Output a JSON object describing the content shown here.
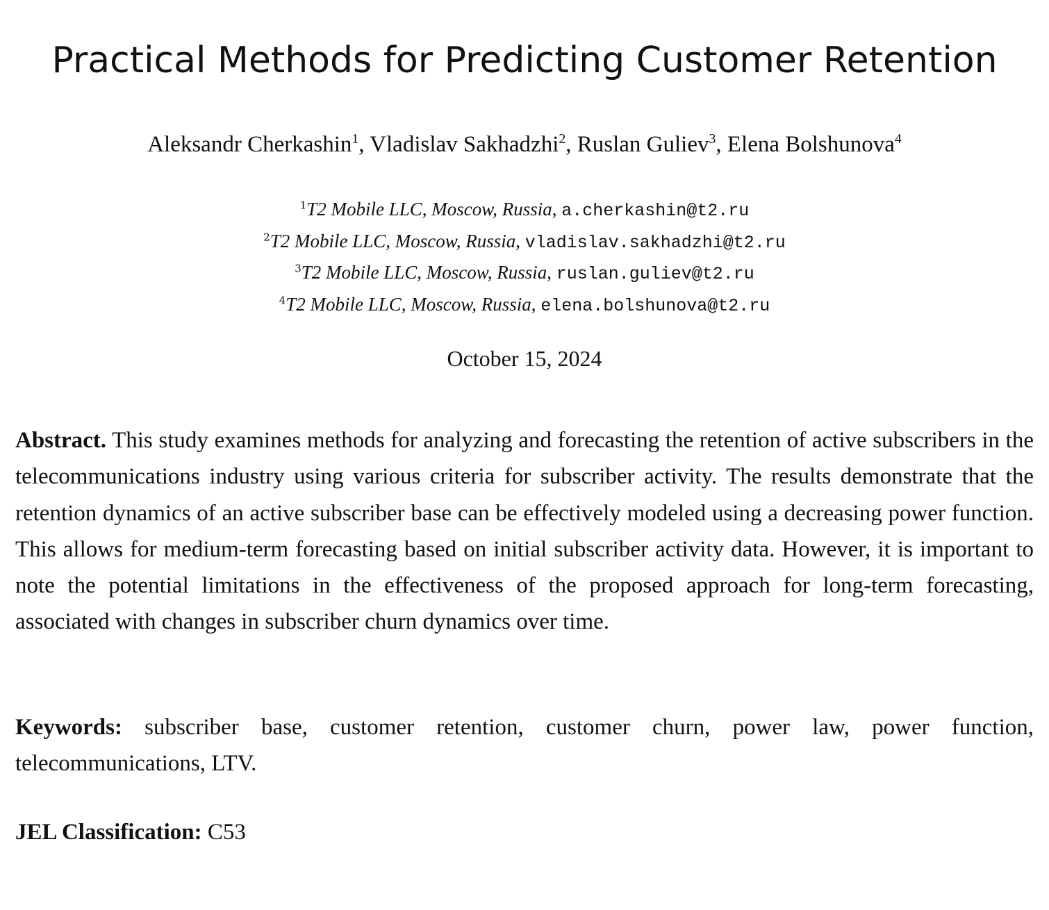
{
  "paper": {
    "title": "Practical Methods for Predicting Customer Retention",
    "authors": [
      {
        "name": "Aleksandr Cherkashin",
        "mark": "1",
        "sep": ", "
      },
      {
        "name": "Vladislav Sakhadzhi",
        "mark": "2",
        "sep": ", "
      },
      {
        "name": "Ruslan Guliev",
        "mark": "3",
        "sep": ", "
      },
      {
        "name": "Elena Bolshunova",
        "mark": "4",
        "sep": ""
      }
    ],
    "affiliations": [
      {
        "mark": "1",
        "org": "T2 Mobile LLC, Moscow, Russia",
        "email": "a.cherkashin@t2.ru"
      },
      {
        "mark": "2",
        "org": "T2 Mobile LLC, Moscow, Russia",
        "email": "vladislav.sakhadzhi@t2.ru"
      },
      {
        "mark": "3",
        "org": "T2 Mobile LLC, Moscow, Russia",
        "email": "ruslan.guliev@t2.ru"
      },
      {
        "mark": "4",
        "org": "T2 Mobile LLC, Moscow, Russia",
        "email": "elena.bolshunova@t2.ru"
      }
    ],
    "date": "October 15, 2024",
    "abstract": {
      "label": "Abstract.",
      "text": "This study examines methods for analyzing and forecasting the retention of active subscribers in the telecommunications industry using various criteria for subscriber activity. The results demonstrate that the retention dynamics of an active subscriber base can be effectively modeled using a decreasing power function. This allows for medium-term forecasting based on initial subscriber activity data. However, it is important to note the potential limitations in the effectiveness of the proposed approach for long-term forecasting, associated with changes in subscriber churn dynamics over time."
    },
    "keywords": {
      "label": "Keywords:",
      "text": "subscriber base, customer retention, customer churn, power law, power function, telecommunications, LTV."
    },
    "jel": {
      "label": "JEL Classification:",
      "text": "C53"
    }
  }
}
